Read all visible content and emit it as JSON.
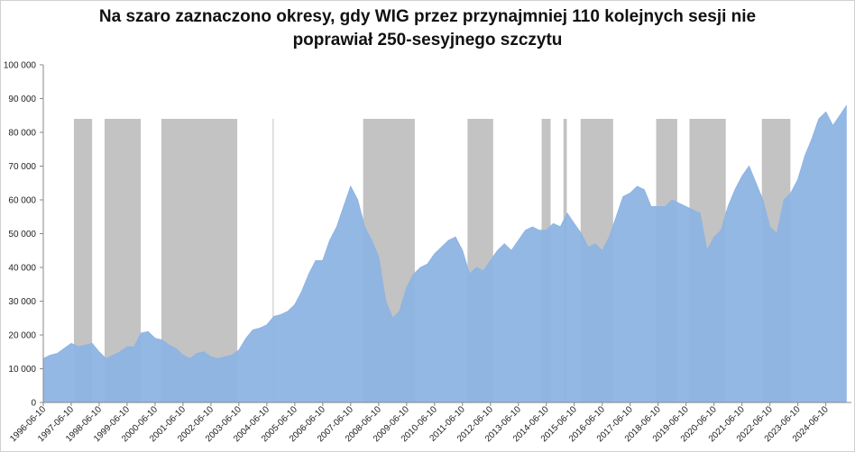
{
  "chart_data": {
    "type": "area",
    "title": [
      "Na szaro zaznaczono okresy, gdy WIG przez przynajmniej 110 kolejnych sesji nie",
      "poprawiał 250-sesyjnego szczytu"
    ],
    "x": [
      "1996-06-10",
      "1996-09-10",
      "1996-12-10",
      "1997-03-10",
      "1997-06-10",
      "1997-09-10",
      "1997-12-10",
      "1998-03-10",
      "1998-06-10",
      "1998-09-10",
      "1998-12-10",
      "1999-03-10",
      "1999-06-10",
      "1999-09-10",
      "1999-12-10",
      "2000-03-10",
      "2000-06-10",
      "2000-09-10",
      "2000-12-10",
      "2001-03-10",
      "2001-06-10",
      "2001-09-10",
      "2001-12-10",
      "2002-03-10",
      "2002-06-10",
      "2002-09-10",
      "2002-12-10",
      "2003-03-10",
      "2003-06-10",
      "2003-09-10",
      "2003-12-10",
      "2004-03-10",
      "2004-06-10",
      "2004-09-10",
      "2004-12-10",
      "2005-03-10",
      "2005-06-10",
      "2005-09-10",
      "2005-12-10",
      "2006-03-10",
      "2006-06-10",
      "2006-09-10",
      "2006-12-10",
      "2007-03-10",
      "2007-06-10",
      "2007-09-10",
      "2007-12-10",
      "2008-03-10",
      "2008-06-10",
      "2008-09-10",
      "2008-12-10",
      "2009-03-10",
      "2009-06-10",
      "2009-09-10",
      "2009-12-10",
      "2010-03-10",
      "2010-06-10",
      "2010-09-10",
      "2010-12-10",
      "2011-03-10",
      "2011-06-10",
      "2011-09-10",
      "2011-12-10",
      "2012-03-10",
      "2012-06-10",
      "2012-09-10",
      "2012-12-10",
      "2013-03-10",
      "2013-06-10",
      "2013-09-10",
      "2013-12-10",
      "2014-03-10",
      "2014-06-10",
      "2014-09-10",
      "2014-12-10",
      "2015-03-10",
      "2015-06-10",
      "2015-09-10",
      "2015-12-10",
      "2016-03-10",
      "2016-06-10",
      "2016-09-10",
      "2016-12-10",
      "2017-03-10",
      "2017-06-10",
      "2017-09-10",
      "2017-12-10",
      "2018-03-10",
      "2018-06-10",
      "2018-09-10",
      "2018-12-10",
      "2019-03-10",
      "2019-06-10",
      "2019-09-10",
      "2019-12-10",
      "2020-03-10",
      "2020-06-10",
      "2020-09-10",
      "2020-12-10",
      "2021-03-10",
      "2021-06-10",
      "2021-09-10",
      "2021-12-10",
      "2022-03-10",
      "2022-06-10",
      "2022-09-10",
      "2022-12-10",
      "2023-03-10",
      "2023-06-10",
      "2023-09-10",
      "2023-12-10",
      "2024-03-10",
      "2024-06-10",
      "2024-09-10",
      "2024-12-10",
      "2025-03-10"
    ],
    "values": [
      13000,
      14000,
      14500,
      16000,
      17500,
      16500,
      17000,
      17500,
      15000,
      13000,
      14000,
      15000,
      16500,
      16500,
      20500,
      21000,
      19000,
      18500,
      17000,
      16000,
      14000,
      13000,
      14500,
      15000,
      13500,
      13000,
      13500,
      14000,
      15500,
      19000,
      21500,
      22000,
      23000,
      25500,
      26000,
      27000,
      29000,
      33000,
      38000,
      42000,
      42000,
      48000,
      52000,
      58000,
      64000,
      60000,
      52000,
      48000,
      43000,
      30000,
      25000,
      27000,
      34000,
      38000,
      40000,
      41000,
      44000,
      46000,
      48000,
      49000,
      45000,
      38000,
      40000,
      39000,
      42000,
      45000,
      47000,
      45000,
      48000,
      51000,
      52000,
      51000,
      51000,
      53000,
      52000,
      56000,
      53000,
      50000,
      46000,
      47000,
      45000,
      49000,
      55000,
      61000,
      62000,
      64000,
      63000,
      58000,
      58000,
      58000,
      60000,
      59000,
      58000,
      57000,
      56000,
      45000,
      49000,
      51000,
      58000,
      63000,
      67000,
      70000,
      65000,
      60000,
      52000,
      50000,
      60000,
      62000,
      66000,
      73000,
      78000,
      84000,
      86000,
      82000,
      85000,
      88000
    ],
    "color": "#8eb4e3",
    "shade_color": "#c3c3c3",
    "shade_top": 84000,
    "shaded_periods": [
      {
        "start": "1997-07-15",
        "end": "1998-03-10"
      },
      {
        "start": "1998-08-20",
        "end": "1999-12-05"
      },
      {
        "start": "2000-09-01",
        "end": "2003-05-20"
      },
      {
        "start": "2004-08-25",
        "end": "2004-09-05"
      },
      {
        "start": "2007-11-20",
        "end": "2009-09-25"
      },
      {
        "start": "2011-08-15",
        "end": "2012-07-15"
      },
      {
        "start": "2014-04-10",
        "end": "2014-08-05"
      },
      {
        "start": "2015-01-20",
        "end": "2015-03-05"
      },
      {
        "start": "2015-09-01",
        "end": "2016-10-30"
      },
      {
        "start": "2018-05-15",
        "end": "2019-02-15"
      },
      {
        "start": "2019-07-25",
        "end": "2020-11-10"
      },
      {
        "start": "2022-02-25",
        "end": "2023-03-05"
      }
    ],
    "xlim": [
      "1996-06-10",
      "2025-05-10"
    ],
    "xticks": [
      "1996-06-10",
      "1997-06-10",
      "1998-06-10",
      "1999-06-10",
      "2000-06-10",
      "2001-06-10",
      "2002-06-10",
      "2003-06-10",
      "2004-06-10",
      "2005-06-10",
      "2006-06-10",
      "2007-06-10",
      "2008-06-10",
      "2009-06-10",
      "2010-06-10",
      "2011-06-10",
      "2012-06-10",
      "2013-06-10",
      "2014-06-10",
      "2015-06-10",
      "2016-06-10",
      "2017-06-10",
      "2018-06-10",
      "2019-06-10",
      "2020-06-10",
      "2021-06-10",
      "2022-06-10",
      "2023-06-10",
      "2024-06-10"
    ],
    "ylim": [
      0,
      100000
    ],
    "yticks": [
      0,
      {
        "value": 10000,
        "label": "10 000"
      },
      {
        "value": 20000,
        "label": "20 000"
      },
      {
        "value": 30000,
        "label": "30 000"
      },
      {
        "value": 40000,
        "label": "40 000"
      },
      {
        "value": 50000,
        "label": "50 000"
      },
      {
        "value": 60000,
        "label": "60 000"
      },
      {
        "value": 70000,
        "label": "70 000"
      },
      {
        "value": 80000,
        "label": "80 000"
      },
      {
        "value": 90000,
        "label": "90 000"
      },
      {
        "value": 100000,
        "label": "100 000"
      }
    ]
  }
}
